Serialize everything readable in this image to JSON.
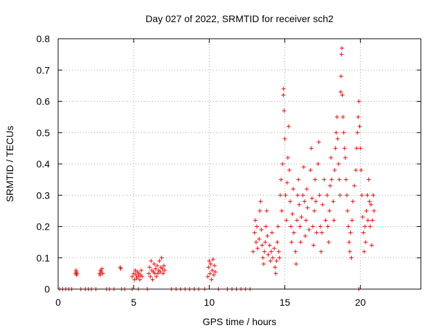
{
  "chart_data": {
    "type": "scatter",
    "title": "Day 027 of 2022, SRMTID for receiver sch2",
    "xlabel": "GPS time / hours",
    "ylabel": "SRMTID / TECUs",
    "xlim": [
      0,
      24
    ],
    "ylim": [
      0,
      0.8
    ],
    "grid": true,
    "marker": "+",
    "series_color": "#ff0000",
    "x_ticks": [
      {
        "value": 0,
        "label": "0"
      },
      {
        "value": 5,
        "label": "5"
      },
      {
        "value": 10,
        "label": "10"
      },
      {
        "value": 15,
        "label": "15"
      },
      {
        "value": 20,
        "label": "20"
      }
    ],
    "y_ticks": [
      {
        "value": 0,
        "label": "0"
      },
      {
        "value": 0.1,
        "label": "0.1"
      },
      {
        "value": 0.2,
        "label": "0.2"
      },
      {
        "value": 0.3,
        "label": "0.3"
      },
      {
        "value": 0.4,
        "label": "0.4"
      },
      {
        "value": 0.5,
        "label": "0.5"
      },
      {
        "value": 0.6,
        "label": "0.6"
      },
      {
        "value": 0.7,
        "label": "0.7"
      },
      {
        "value": 0.8,
        "label": "0.8"
      }
    ],
    "series": [
      {
        "name": "SRMTID",
        "points": [
          [
            0.1,
            0
          ],
          [
            0.3,
            0
          ],
          [
            0.5,
            0
          ],
          [
            0.7,
            0
          ],
          [
            0.9,
            0
          ],
          [
            1.5,
            0
          ],
          [
            1.8,
            0
          ],
          [
            2.0,
            0
          ],
          [
            2.2,
            0
          ],
          [
            2.5,
            0
          ],
          [
            3.2,
            0
          ],
          [
            3.4,
            0
          ],
          [
            3.7,
            0
          ],
          [
            4.2,
            0
          ],
          [
            4.4,
            0
          ],
          [
            4.9,
            0
          ],
          [
            5.3,
            0
          ],
          [
            5.9,
            0
          ],
          [
            7.5,
            0
          ],
          [
            7.8,
            0
          ],
          [
            8.1,
            0
          ],
          [
            8.4,
            0
          ],
          [
            8.7,
            0
          ],
          [
            9.0,
            0
          ],
          [
            9.3,
            0
          ],
          [
            9.7,
            0
          ],
          [
            10.6,
            0
          ],
          [
            11.2,
            0
          ],
          [
            11.5,
            0
          ],
          [
            11.8,
            0
          ],
          [
            12.1,
            0
          ],
          [
            12.4,
            0
          ],
          [
            12.7,
            0
          ],
          [
            19.9,
            0
          ],
          [
            1.15,
            0.05
          ],
          [
            1.2,
            0.055
          ],
          [
            1.25,
            0.05
          ],
          [
            1.18,
            0.06
          ],
          [
            1.22,
            0.045
          ],
          [
            2.75,
            0.05
          ],
          [
            2.8,
            0.06
          ],
          [
            2.85,
            0.055
          ],
          [
            2.9,
            0.065
          ],
          [
            2.78,
            0.045
          ],
          [
            2.95,
            0.05
          ],
          [
            4.1,
            0.07
          ],
          [
            4.15,
            0.065
          ],
          [
            4.9,
            0.04
          ],
          [
            5.0,
            0.05
          ],
          [
            5.05,
            0.03
          ],
          [
            5.1,
            0.06
          ],
          [
            5.15,
            0.045
          ],
          [
            5.2,
            0.035
          ],
          [
            5.25,
            0.055
          ],
          [
            5.3,
            0.04
          ],
          [
            5.35,
            0.05
          ],
          [
            5.4,
            0.03
          ],
          [
            5.45,
            0.045
          ],
          [
            5.5,
            0.06
          ],
          [
            5.55,
            0.04
          ],
          [
            6.0,
            0.05
          ],
          [
            6.05,
            0.07
          ],
          [
            6.1,
            0.04
          ],
          [
            6.15,
            0.09
          ],
          [
            6.2,
            0.06
          ],
          [
            6.25,
            0.03
          ],
          [
            6.3,
            0.055
          ],
          [
            6.35,
            0.08
          ],
          [
            6.4,
            0.05
          ],
          [
            6.45,
            0.065
          ],
          [
            6.5,
            0.04
          ],
          [
            6.55,
            0.075
          ],
          [
            6.6,
            0.05
          ],
          [
            6.65,
            0.06
          ],
          [
            6.7,
            0.09
          ],
          [
            6.75,
            0.055
          ],
          [
            6.8,
            0.07
          ],
          [
            6.85,
            0.1
          ],
          [
            6.9,
            0.065
          ],
          [
            6.95,
            0.05
          ],
          [
            7.0,
            0.075
          ],
          [
            7.05,
            0.06
          ],
          [
            9.9,
            0.04
          ],
          [
            9.95,
            0.07
          ],
          [
            10.0,
            0.09
          ],
          [
            10.05,
            0.05
          ],
          [
            10.1,
            0.08
          ],
          [
            10.15,
            0.03
          ],
          [
            10.2,
            0.06
          ],
          [
            10.25,
            0.095
          ],
          [
            10.3,
            0.045
          ],
          [
            10.35,
            0.075
          ],
          [
            10.4,
            0.055
          ],
          [
            12.9,
            0.12
          ],
          [
            13.0,
            0.18
          ],
          [
            13.05,
            0.22
          ],
          [
            13.1,
            0.15
          ],
          [
            13.15,
            0.2
          ],
          [
            13.2,
            0.13
          ],
          [
            13.3,
            0.16
          ],
          [
            13.35,
            0.25
          ],
          [
            13.4,
            0.28
          ],
          [
            13.45,
            0.19
          ],
          [
            13.5,
            0.14
          ],
          [
            13.55,
            0.1
          ],
          [
            13.6,
            0.08
          ],
          [
            13.65,
            0.12
          ],
          [
            13.7,
            0.15
          ],
          [
            13.75,
            0.2
          ],
          [
            13.8,
            0.25
          ],
          [
            13.85,
            0.17
          ],
          [
            13.9,
            0.11
          ],
          [
            14.0,
            0.14
          ],
          [
            14.05,
            0.09
          ],
          [
            14.1,
            0.12
          ],
          [
            14.15,
            0.18
          ],
          [
            14.2,
            0.1
          ],
          [
            14.3,
            0.13
          ],
          [
            14.35,
            0.07
          ],
          [
            14.4,
            0.05
          ],
          [
            14.45,
            0.09
          ],
          [
            14.5,
            0.15
          ],
          [
            14.55,
            0.2
          ],
          [
            14.6,
            0.12
          ],
          [
            14.65,
            0.1
          ],
          [
            14.7,
            0.3
          ],
          [
            14.75,
            0.35
          ],
          [
            14.8,
            0.25
          ],
          [
            14.85,
            0.4
          ],
          [
            14.9,
            0.62
          ],
          [
            14.92,
            0.64
          ],
          [
            14.95,
            0.57
          ],
          [
            15.0,
            0.48
          ],
          [
            15.05,
            0.3
          ],
          [
            15.1,
            0.22
          ],
          [
            15.15,
            0.34
          ],
          [
            15.2,
            0.42
          ],
          [
            15.25,
            0.52
          ],
          [
            15.3,
            0.38
          ],
          [
            15.35,
            0.28
          ],
          [
            15.4,
            0.2
          ],
          [
            15.45,
            0.15
          ],
          [
            15.5,
            0.24
          ],
          [
            15.55,
            0.32
          ],
          [
            15.6,
            0.18
          ],
          [
            15.7,
            0.12
          ],
          [
            15.75,
            0.08
          ],
          [
            15.8,
            0.22
          ],
          [
            15.85,
            0.3
          ],
          [
            15.9,
            0.35
          ],
          [
            15.95,
            0.27
          ],
          [
            16.0,
            0.2
          ],
          [
            16.05,
            0.15
          ],
          [
            16.1,
            0.23
          ],
          [
            16.2,
            0.3
          ],
          [
            16.25,
            0.39
          ],
          [
            16.3,
            0.28
          ],
          [
            16.35,
            0.17
          ],
          [
            16.4,
            0.22
          ],
          [
            16.45,
            0.32
          ],
          [
            16.5,
            0.26
          ],
          [
            16.6,
            0.19
          ],
          [
            16.7,
            0.38
          ],
          [
            16.75,
            0.45
          ],
          [
            16.8,
            0.29
          ],
          [
            16.85,
            0.2
          ],
          [
            16.9,
            0.14
          ],
          [
            16.95,
            0.25
          ],
          [
            17.0,
            0.35
          ],
          [
            17.05,
            0.28
          ],
          [
            17.1,
            0.18
          ],
          [
            17.2,
            0.4
          ],
          [
            17.25,
            0.47
          ],
          [
            17.3,
            0.3
          ],
          [
            17.35,
            0.2
          ],
          [
            17.4,
            0.12
          ],
          [
            17.45,
            0.18
          ],
          [
            17.5,
            0.27
          ],
          [
            17.6,
            0.35
          ],
          [
            17.7,
            0.22
          ],
          [
            17.8,
            0.3
          ],
          [
            17.85,
            0.2
          ],
          [
            17.9,
            0.15
          ],
          [
            17.95,
            0.25
          ],
          [
            18.0,
            0.33
          ],
          [
            18.05,
            0.42
          ],
          [
            18.1,
            0.35
          ],
          [
            18.2,
            0.28
          ],
          [
            18.25,
            0.22
          ],
          [
            18.3,
            0.38
          ],
          [
            18.35,
            0.45
          ],
          [
            18.4,
            0.5
          ],
          [
            18.45,
            0.55
          ],
          [
            18.5,
            0.48
          ],
          [
            18.55,
            0.4
          ],
          [
            18.6,
            0.35
          ],
          [
            18.65,
            0.3
          ],
          [
            18.7,
            0.63
          ],
          [
            18.72,
            0.68
          ],
          [
            18.75,
            0.75
          ],
          [
            18.78,
            0.77
          ],
          [
            18.8,
            0.62
          ],
          [
            18.85,
            0.55
          ],
          [
            18.9,
            0.5
          ],
          [
            18.95,
            0.45
          ],
          [
            19.0,
            0.42
          ],
          [
            19.05,
            0.35
          ],
          [
            19.1,
            0.3
          ],
          [
            19.15,
            0.25
          ],
          [
            19.2,
            0.2
          ],
          [
            19.25,
            0.15
          ],
          [
            19.3,
            0.12
          ],
          [
            19.35,
            0.18
          ],
          [
            19.4,
            0.1
          ],
          [
            19.45,
            0.22
          ],
          [
            19.5,
            0.28
          ],
          [
            19.6,
            0.33
          ],
          [
            19.7,
            0.38
          ],
          [
            19.75,
            0.45
          ],
          [
            19.8,
            0.5
          ],
          [
            19.85,
            0.55
          ],
          [
            19.9,
            0.6
          ],
          [
            19.95,
            0.52
          ],
          [
            20.0,
            0.45
          ],
          [
            20.05,
            0.38
          ],
          [
            20.1,
            0.3
          ],
          [
            20.15,
            0.23
          ],
          [
            20.2,
            0.18
          ],
          [
            20.25,
            0.12
          ],
          [
            20.3,
            0.2
          ],
          [
            20.35,
            0.15
          ],
          [
            20.4,
            0.25
          ],
          [
            20.45,
            0.3
          ],
          [
            20.5,
            0.22
          ],
          [
            20.55,
            0.35
          ],
          [
            20.6,
            0.28
          ],
          [
            20.65,
            0.2
          ],
          [
            20.7,
            0.27
          ],
          [
            20.75,
            0.14
          ],
          [
            20.8,
            0.22
          ],
          [
            20.85,
            0.3
          ],
          [
            20.9,
            0.25
          ]
        ]
      }
    ]
  }
}
